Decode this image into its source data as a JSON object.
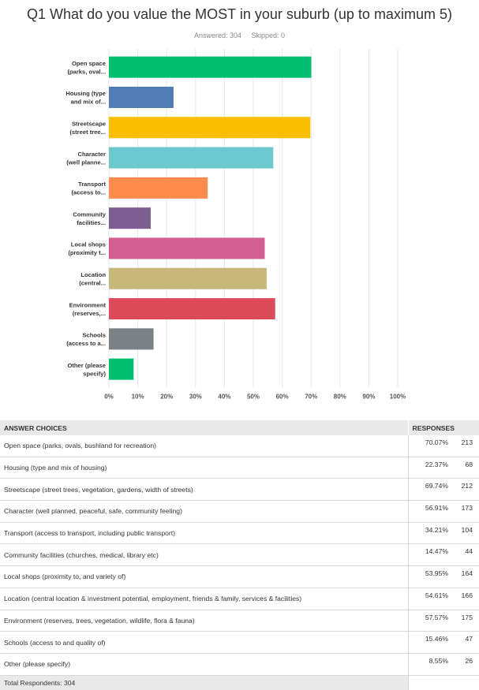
{
  "title": "Q1 What do you value the MOST in your suburb (up to maximum 5)",
  "answered": "Answered: 304",
  "skipped": "Skipped: 0",
  "chart_data": {
    "type": "bar",
    "orientation": "horizontal",
    "categories": [
      [
        "Open space",
        "(parks, oval..."
      ],
      [
        "Housing (type",
        "and mix of..."
      ],
      [
        "Streetscape",
        "(street tree..."
      ],
      [
        "Character",
        "(well planne..."
      ],
      [
        "Transport",
        "(access to..."
      ],
      [
        "Community",
        "facilities..."
      ],
      [
        "Local shops",
        "(proximity t..."
      ],
      [
        "Location",
        "(central..."
      ],
      [
        "Environment",
        "(reserves,..."
      ],
      [
        "Schools",
        "(access to a..."
      ],
      [
        "Other (please",
        "specify)"
      ]
    ],
    "values": [
      70.07,
      22.37,
      69.74,
      56.91,
      34.21,
      14.47,
      53.95,
      54.61,
      57.57,
      15.46,
      8.55
    ],
    "colors": [
      "#00bf6f",
      "#507cb6",
      "#f9be00",
      "#6bc8cd",
      "#ff8b4f",
      "#7d5e90",
      "#d25f90",
      "#c8b77a",
      "#dd4b5a",
      "#7c8185",
      "#00bf6f"
    ],
    "xticks": [
      "0%",
      "10%",
      "20%",
      "30%",
      "40%",
      "50%",
      "60%",
      "70%",
      "80%",
      "90%",
      "100%"
    ],
    "xlim": [
      0,
      100
    ],
    "grid": true
  },
  "table": {
    "header_choice": "ANSWER CHOICES",
    "header_responses": "RESPONSES",
    "rows": [
      {
        "label": "Open space (parks, ovals, bushland for recreation)",
        "pct": "70.07%",
        "count": "213"
      },
      {
        "label": "Housing (type and mix of housing)",
        "pct": "22.37%",
        "count": "68"
      },
      {
        "label": "Streetscape (street trees, vegetation, gardens, width of streets)",
        "pct": "69.74%",
        "count": "212"
      },
      {
        "label": "Character (well planned, peaceful, safe, community feeling)",
        "pct": "56.91%",
        "count": "173"
      },
      {
        "label": "Transport (access to transport, including public transport)",
        "pct": "34.21%",
        "count": "104"
      },
      {
        "label": "Community facilities (churches, medical, library etc)",
        "pct": "14.47%",
        "count": "44"
      },
      {
        "label": "Local shops (proximity to, and variety of)",
        "pct": "53.95%",
        "count": "164"
      },
      {
        "label": "Location (central location & investment potential, employment, friends & family, services & facilities)",
        "pct": "54.61%",
        "count": "166"
      },
      {
        "label": "Environment (reserves, trees, vegetation, wildlife, flora & fauna)",
        "pct": "57.57%",
        "count": "175"
      },
      {
        "label": "Schools (access to and quality of)",
        "pct": "15.46%",
        "count": "47"
      },
      {
        "label": "Other (please specify)",
        "pct": "8.55%",
        "count": "26"
      }
    ],
    "total": "Total Respondents: 304"
  }
}
